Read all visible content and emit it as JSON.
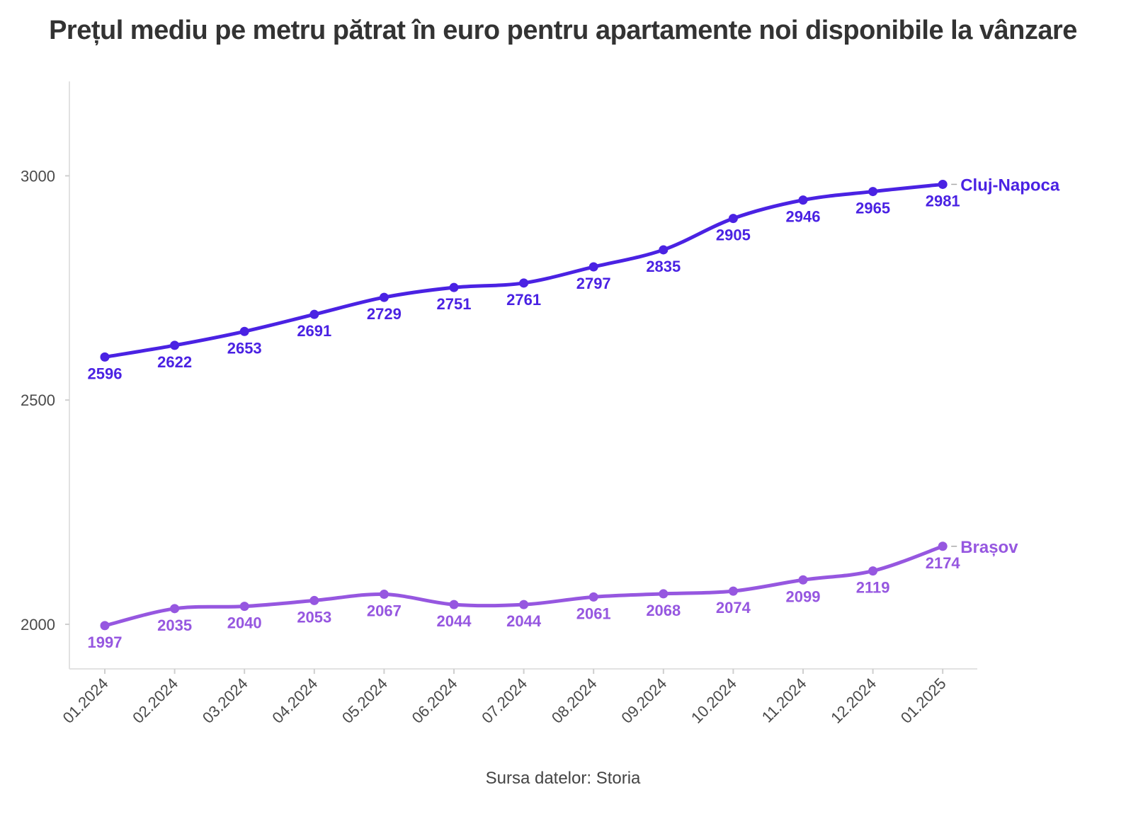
{
  "chart_data": {
    "type": "line",
    "title": "Prețul mediu pe metru pătrat în euro pentru apartamente noi disponibile la vânzare",
    "caption": "Sursa datelor: Storia",
    "categories": [
      "01.2024",
      "02.2024",
      "03.2024",
      "04.2024",
      "05.2024",
      "06.2024",
      "07.2024",
      "08.2024",
      "09.2024",
      "10.2024",
      "11.2024",
      "12.2024",
      "01.2025"
    ],
    "ylim": [
      1900,
      3210
    ],
    "yticks": [
      2000,
      2500,
      3000
    ],
    "grid": false,
    "series": [
      {
        "name": "Cluj-Napoca",
        "color": "#4a22e3",
        "values": [
          2596,
          2622,
          2653,
          2691,
          2729,
          2751,
          2761,
          2797,
          2835,
          2905,
          2946,
          2965,
          2981
        ]
      },
      {
        "name": "Brașov",
        "color": "#9657e0",
        "values": [
          1997,
          2035,
          2040,
          2053,
          2067,
          2044,
          2044,
          2061,
          2068,
          2074,
          2099,
          2119,
          2174
        ]
      }
    ]
  }
}
